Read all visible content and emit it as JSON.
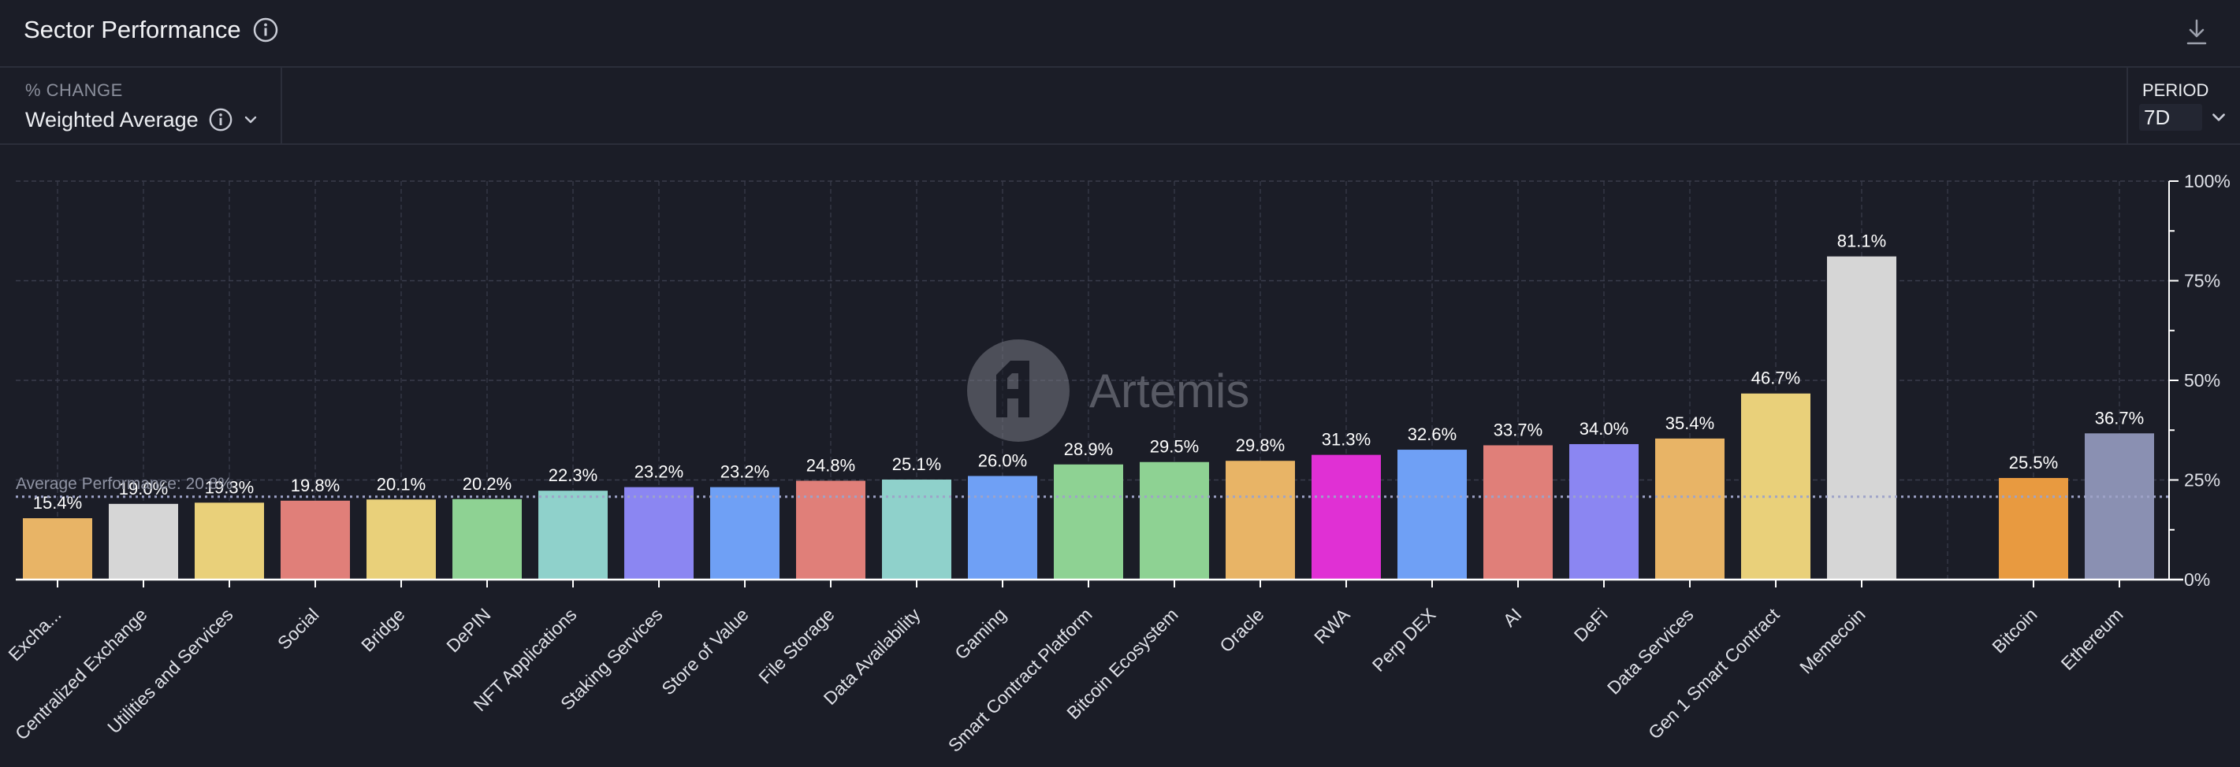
{
  "header": {
    "title": "Sector Performance",
    "icons": [
      "info-icon",
      "download-icon"
    ]
  },
  "controls": {
    "change_label": "% CHANGE",
    "change_value": "Weighted Average",
    "period_label": "PERIOD",
    "period_value": "7D"
  },
  "watermark": "Artemis",
  "colors": {
    "background": "#1b1d27",
    "grid": "#3a3d4c",
    "axis": "#ffffff",
    "average_line": "#9ea3c8"
  },
  "chart_data": {
    "type": "bar",
    "title": "",
    "xlabel": "",
    "ylabel": "",
    "ylim": [
      0,
      100
    ],
    "y_ticks": [
      "0%",
      "25%",
      "50%",
      "75%",
      "100%"
    ],
    "y_axis_position": "right",
    "grid": true,
    "average": {
      "label": "Average Performance: 20.8%",
      "value": 20.8
    },
    "categories": [
      "Excha...",
      "Centralized Exchange",
      "Utilities and Services",
      "Social",
      "Bridge",
      "DePIN",
      "NFT Applications",
      "Staking Services",
      "Store of Value",
      "File Storage",
      "Data Availability",
      "Gaming",
      "Smart Contract Platform",
      "Bitcoin Ecosystem",
      "Oracle",
      "RWA",
      "Perp DEX",
      "AI",
      "DeFi",
      "Data Services",
      "Gen 1 Smart Contract",
      "Memecoin",
      "Bitcoin",
      "Ethereum"
    ],
    "values": [
      15.4,
      19.0,
      19.3,
      19.8,
      20.1,
      20.2,
      22.3,
      23.2,
      23.2,
      24.8,
      25.1,
      26.0,
      28.9,
      29.5,
      29.8,
      31.3,
      32.6,
      33.7,
      34.0,
      35.4,
      46.7,
      81.1,
      25.5,
      36.7
    ],
    "value_labels": [
      "15.4%",
      "19.0%",
      "19.3%",
      "19.8%",
      "20.1%",
      "20.2%",
      "22.3%",
      "23.2%",
      "23.2%",
      "24.8%",
      "25.1%",
      "26.0%",
      "28.9%",
      "29.5%",
      "29.8%",
      "31.3%",
      "32.6%",
      "33.7%",
      "34.0%",
      "35.4%",
      "46.7%",
      "81.1%",
      "25.5%",
      "36.7%"
    ],
    "bar_colors": [
      "#e8b466",
      "#d6d6d6",
      "#e9d07a",
      "#e07f79",
      "#e9d07a",
      "#8ed293",
      "#8fd1cb",
      "#8b86f2",
      "#6fa0f5",
      "#e07f79",
      "#8fd1cb",
      "#6fa0f5",
      "#8ed293",
      "#8ed293",
      "#e8b466",
      "#e030d4",
      "#6fa0f5",
      "#e07f79",
      "#8b86f2",
      "#e8b466",
      "#e9d07a",
      "#d6d6d6",
      "#e89a40",
      "#8a90b2"
    ]
  }
}
